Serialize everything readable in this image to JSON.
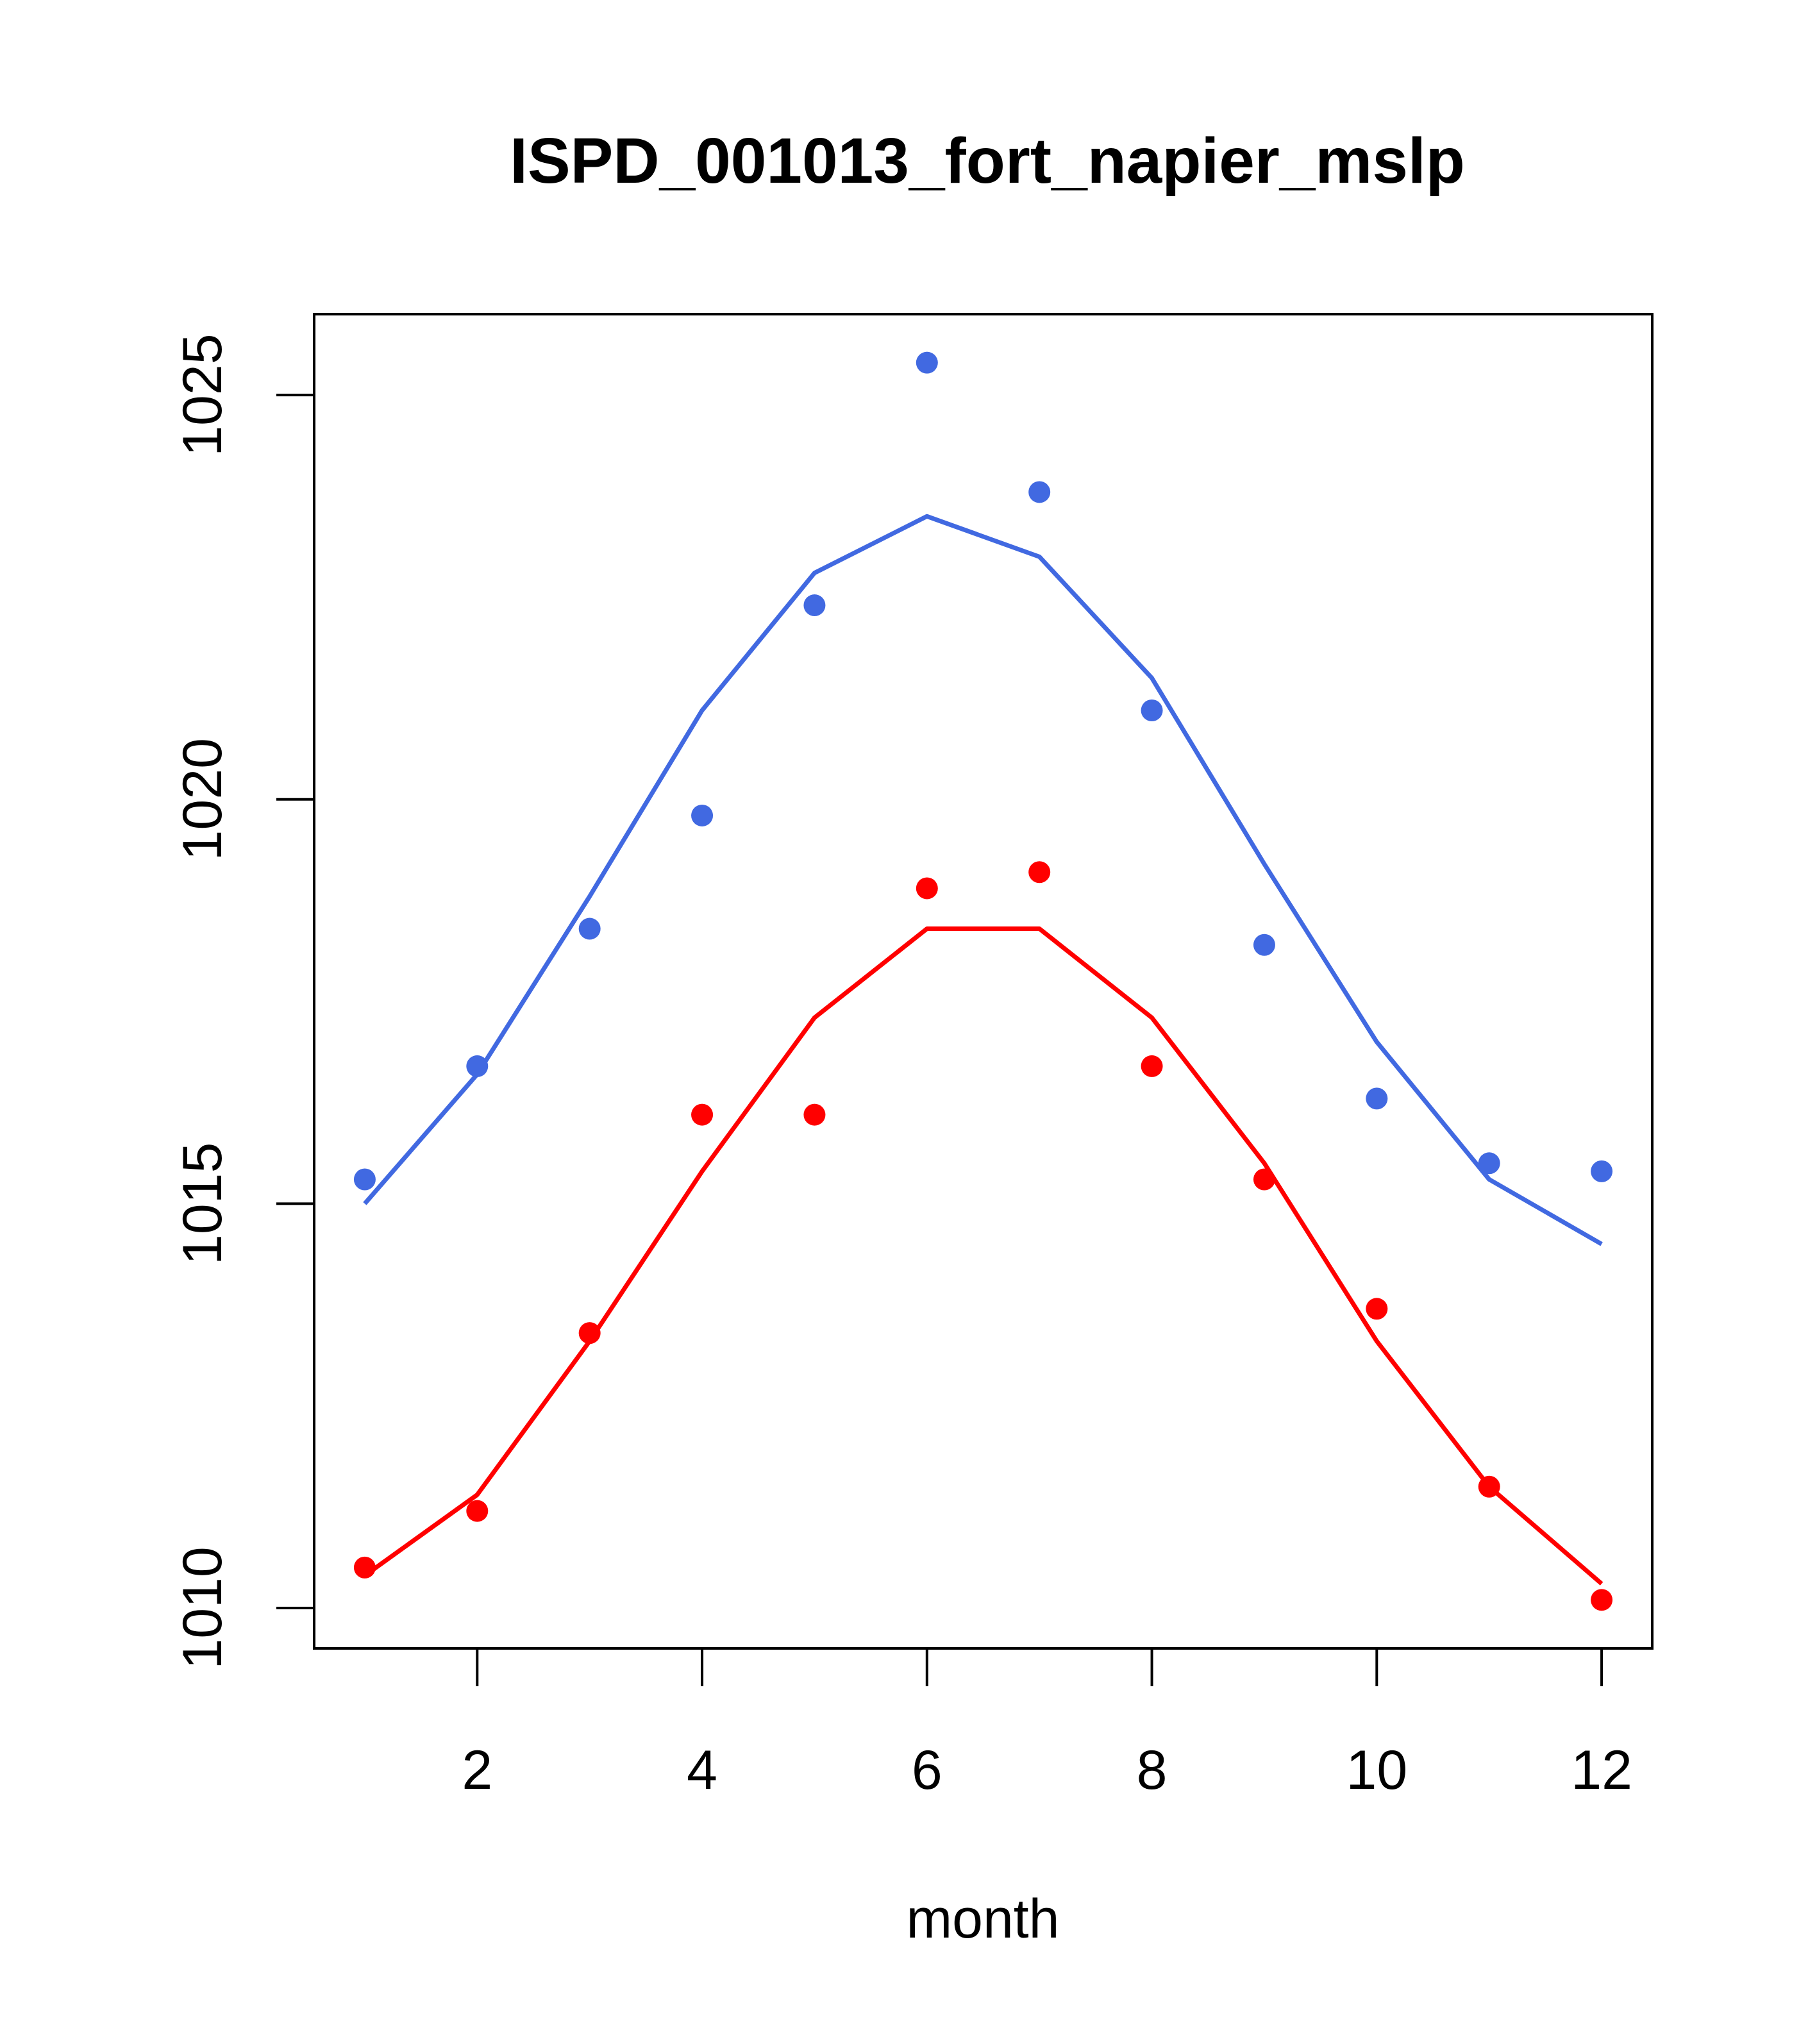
{
  "chart_data": {
    "type": "line",
    "title": "ISPD_001013_fort_napier_mslp",
    "xlabel": "month",
    "ylabel": "",
    "xlim": [
      0.55,
      12.45
    ],
    "ylim": [
      1009.5,
      1026.0
    ],
    "x_ticks": [
      2,
      4,
      6,
      8,
      10,
      12
    ],
    "x_tick_labels": [
      "2",
      "4",
      "6",
      "8",
      "10",
      "12"
    ],
    "y_ticks": [
      1010,
      1015,
      1020,
      1025
    ],
    "y_tick_labels": [
      "1010",
      "1015",
      "1020",
      "1025"
    ],
    "grid": false,
    "x": [
      1,
      2,
      3,
      4,
      5,
      6,
      7,
      8,
      9,
      10,
      11,
      12
    ],
    "series": [
      {
        "name": "blue",
        "color": "#4169E1",
        "points": [
          1015.3,
          1016.7,
          1018.4,
          1019.8,
          1022.4,
          1025.4,
          1023.8,
          1021.1,
          1018.2,
          1016.3,
          1015.5,
          1015.4
        ],
        "line": [
          1015.0,
          1016.6,
          1018.8,
          1021.1,
          1022.8,
          1023.5,
          1023.0,
          1021.5,
          1019.2,
          1017.0,
          1015.3,
          1014.5
        ]
      },
      {
        "name": "red",
        "color": "#FF0000",
        "points": [
          1010.5,
          1011.2,
          1013.4,
          1016.1,
          1016.1,
          1018.9,
          1019.1,
          1016.7,
          1015.3,
          1013.7,
          1011.5,
          1010.1
        ],
        "line": [
          1010.4,
          1011.4,
          1013.3,
          1015.4,
          1017.3,
          1018.4,
          1018.4,
          1017.3,
          1015.5,
          1013.3,
          1011.5,
          1010.3
        ]
      }
    ]
  }
}
